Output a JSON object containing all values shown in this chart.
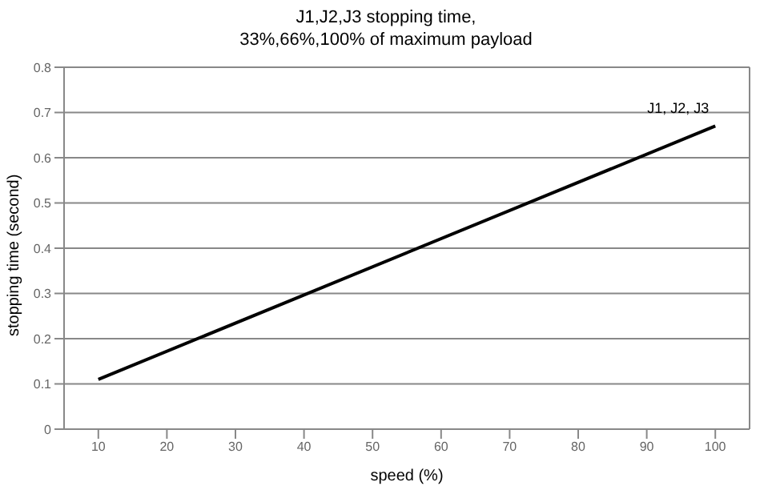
{
  "chart_data": {
    "type": "line",
    "title": "J1,J2,J3 stopping time,",
    "subtitle": "33%,66%,100% of maximum payload",
    "xlabel": "speed (%)",
    "ylabel": "stopping time (second)",
    "x": [
      10,
      100
    ],
    "series": [
      {
        "name": "J1, J2, J3",
        "color": "#000000",
        "values": [
          0.11,
          0.67
        ]
      }
    ],
    "xlim": [
      5,
      105
    ],
    "xticks": [
      10,
      20,
      30,
      40,
      50,
      60,
      70,
      80,
      90,
      100
    ],
    "ylim": [
      0,
      0.8
    ],
    "yticks": [
      0,
      0.1,
      0.2,
      0.3,
      0.4,
      0.5,
      0.6,
      0.7,
      0.8
    ],
    "grid": "y",
    "legend": false,
    "marker": "none",
    "line_style": "solid"
  }
}
